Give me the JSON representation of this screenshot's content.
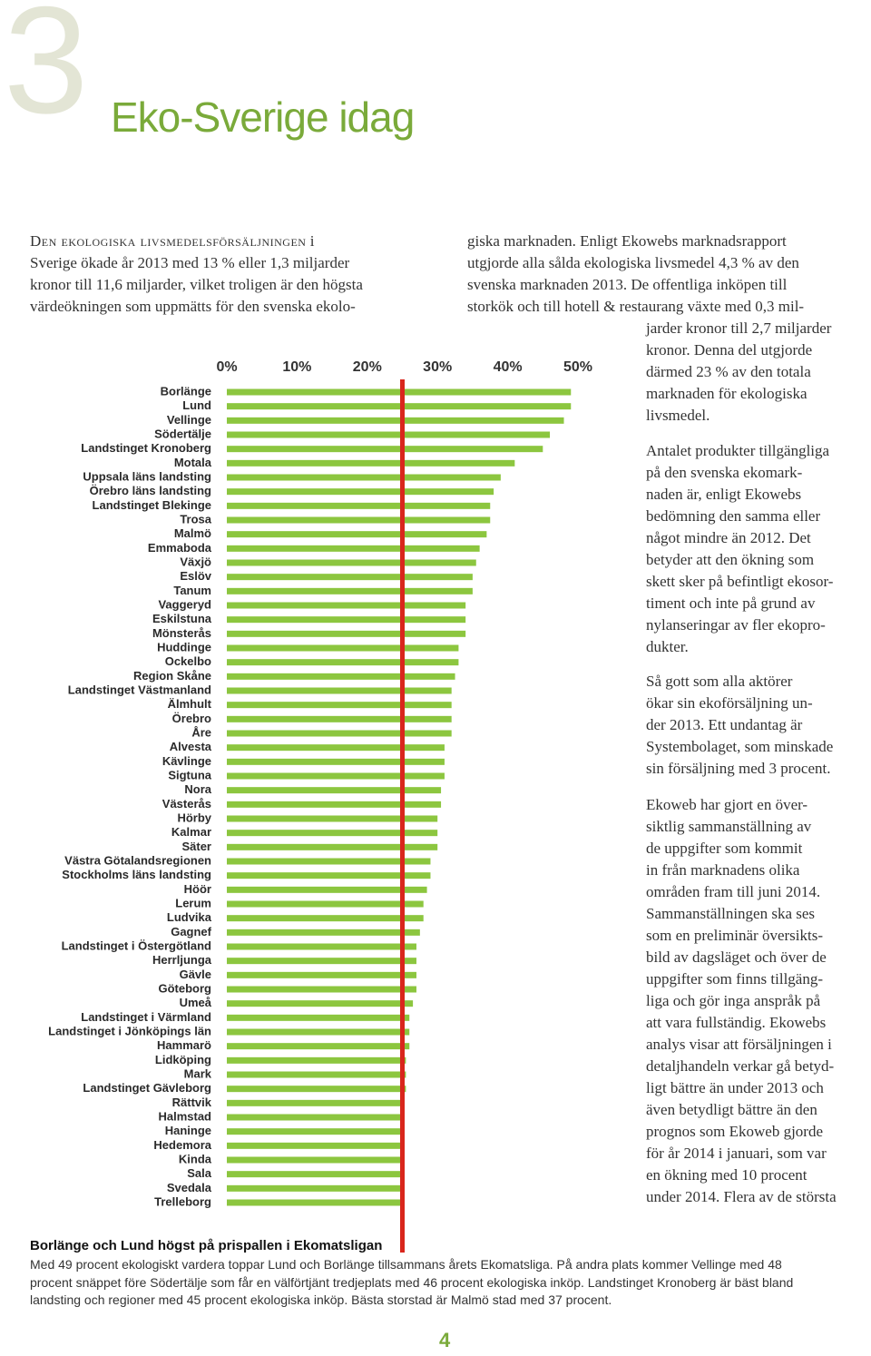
{
  "header": {
    "chapter": "3",
    "title": "Eko-Sverige idag"
  },
  "intro": {
    "lead": "Den ekologiska livsmedelsförsäljningen",
    "lines": [
      "i",
      "Sverige ökade år 2013 med 13 % eller 1,3 miljarder",
      "kronor till 11,6 miljarder, vilket troligen är den högsta",
      "värdeökningen som uppmätts för den svenska ekolo-"
    ]
  },
  "body": {
    "p1_wide": [
      "giska marknaden. Enligt Ekowebs marknadsrapport",
      "utgjorde alla sålda ekologiska livsmedel 4,3 % av den",
      "svenska marknaden 2013. De offentliga inköpen till",
      "storkök och till hotell & restaurang växte med 0,3 mil-"
    ],
    "p1_narrow": [
      "jarder kronor till 2,7 miljarder",
      "kronor. Denna del utgjorde",
      "därmed 23 % av den totala",
      "marknaden för ekologiska",
      "livsmedel."
    ],
    "p2": [
      "Antalet produkter tillgängliga",
      "på den svenska ekomark-",
      "naden är, enligt Ekowebs",
      "bedömning den samma eller",
      "något mindre än 2012. Det",
      "betyder att den ökning som",
      "skett sker på befintligt ekosor-",
      "timent och inte på grund av",
      "nylanseringar av fler ekopro-",
      "dukter."
    ],
    "p3": [
      "Så gott som alla aktörer",
      "ökar sin ekoförsäljning un-",
      "der 2013. Ett undantag är",
      "Systembolaget, som minskade",
      "sin försäljning med 3 procent."
    ],
    "p4": [
      "Ekoweb har gjort en över-",
      "siktlig sammanställning av",
      "de uppgifter som kommit",
      "in från marknadens olika",
      "områden fram till juni 2014.",
      "Sammanställningen ska ses",
      "som en preliminär översikts-",
      "bild av dagsläget och över de",
      "uppgifter som finns tillgäng-",
      "liga och gör inga anspråk på",
      "att vara fullständig. Ekowebs",
      "analys visar att försäljningen i",
      "detaljhandeln verkar gå betyd-",
      "ligt bättre än under 2013 och",
      "även betydligt bättre än den",
      "prognos som Ekoweb gjorde",
      "för år 2014 i januari, som var",
      "en ökning med 10 procent",
      "under 2014. Flera av de största"
    ]
  },
  "chart_data": {
    "type": "bar",
    "orientation": "horizontal",
    "color": "#8cc63f",
    "categories": [
      "Borlänge",
      "Lund",
      "Vellinge",
      "Södertälje",
      "Landstinget Kronoberg",
      "Motala",
      "Uppsala läns landsting",
      "Örebro läns landsting",
      "Landstinget Blekinge",
      "Trosa",
      "Malmö",
      "Emmaboda",
      "Växjö",
      "Eslöv",
      "Tanum",
      "Vaggeryd",
      "Eskilstuna",
      "Mönsterås",
      "Huddinge",
      "Ockelbo",
      "Region Skåne",
      "Landstinget Västmanland",
      "Älmhult",
      "Örebro",
      "Åre",
      "Alvesta",
      "Kävlinge",
      "Sigtuna",
      "Nora",
      "Västerås",
      "Hörby",
      "Kalmar",
      "Säter",
      "Västra Götalandsregionen",
      "Stockholms läns landsting",
      "Höör",
      "Lerum",
      "Ludvika",
      "Gagnef",
      "Landstinget i Östergötland",
      "Herrljunga",
      "Gävle",
      "Göteborg",
      "Umeå",
      "Landstinget i Värmland",
      "Landstinget i Jönköpings län",
      "Hammarö",
      "Lidköping",
      "Mark",
      "Landstinget Gävleborg",
      "Rättvik",
      "Halmstad",
      "Haninge",
      "Hedemora",
      "Kinda",
      "Sala",
      "Svedala",
      "Trelleborg"
    ],
    "values": [
      49,
      49,
      48,
      46,
      45,
      41,
      39,
      38,
      37.5,
      37.5,
      37,
      36,
      35.5,
      35,
      35,
      34,
      34,
      34,
      33,
      33,
      32.5,
      32,
      32,
      32,
      32,
      31,
      31,
      31,
      30.5,
      30.5,
      30,
      30,
      30,
      29,
      29,
      28.5,
      28,
      28,
      27.5,
      27,
      27,
      27,
      27,
      26.5,
      26,
      26,
      26,
      25.5,
      25.5,
      25.5,
      25,
      25,
      25,
      25,
      25,
      25,
      25,
      25
    ],
    "xlim": [
      0,
      50
    ],
    "xticks": [
      {
        "value": 0,
        "label": "0%"
      },
      {
        "value": 10,
        "label": "10%"
      },
      {
        "value": 20,
        "label": "20%"
      },
      {
        "value": 30,
        "label": "30%"
      },
      {
        "value": 40,
        "label": "40%"
      },
      {
        "value": 50,
        "label": "50%"
      }
    ],
    "reference_line": {
      "value": 25,
      "color": "#d9261c"
    }
  },
  "caption": {
    "title": "Borlänge och Lund högst på prispallen i Ekomatsligan",
    "lines": [
      "Med 49 procent ekologiskt vardera toppar Lund och Borlänge tillsammans årets Ekomatsliga. På andra plats kommer Vellinge med 48",
      "procent snäppet före Södertälje som får en välförtjänt tredjeplats med 46 procent ekologiska inköp. Landstinget Kronoberg är bäst bland",
      "landsting och regioner med 45 procent ekologiska inköp. Bästa storstad är Malmö stad med 37 procent."
    ]
  },
  "footer": {
    "page_number": "4"
  }
}
